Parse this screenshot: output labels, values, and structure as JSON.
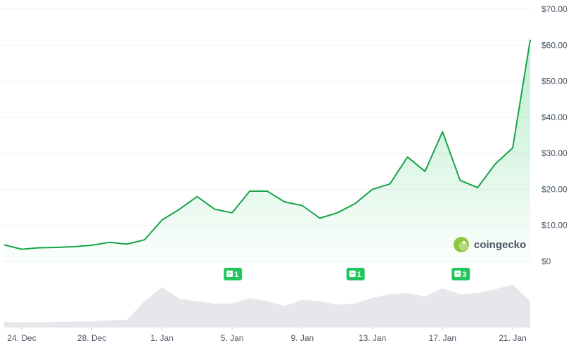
{
  "chart_data": {
    "type": "area",
    "title": "",
    "xlabel": "",
    "ylabel": "",
    "y_unit_prefix": "$",
    "y_ticks": [
      "$70.00",
      "$60.00",
      "$50.00",
      "$40.00",
      "$30.00",
      "$20.00",
      "$10.00",
      "$0"
    ],
    "ylim": [
      0,
      70
    ],
    "x_ticks": [
      "24. Dec",
      "28. Dec",
      "1. Jan",
      "5. Jan",
      "9. Jan",
      "13. Jan",
      "17. Jan",
      "21. Jan"
    ],
    "grid": true,
    "line_color": "#16a34a",
    "fill_color": "#22c55e",
    "volume_color": "#e5e7eb",
    "series": [
      {
        "x": [
          "2023-12-23",
          "2023-12-24",
          "2023-12-25",
          "2023-12-26",
          "2023-12-27",
          "2023-12-28",
          "2023-12-29",
          "2023-12-30",
          "2023-12-31",
          "2024-01-01",
          "2024-01-02",
          "2024-01-03",
          "2024-01-04",
          "2024-01-05",
          "2024-01-06",
          "2024-01-07",
          "2024-01-08",
          "2024-01-09",
          "2024-01-10",
          "2024-01-11",
          "2024-01-12",
          "2024-01-13",
          "2024-01-14",
          "2024-01-15",
          "2024-01-16",
          "2024-01-17",
          "2024-01-18",
          "2024-01-19",
          "2024-01-20",
          "2024-01-21",
          "2024-01-22"
        ],
        "values": [
          4.6,
          3.4,
          3.8,
          3.9,
          4.1,
          4.5,
          5.3,
          4.8,
          6.0,
          11.5,
          14.5,
          18.0,
          14.5,
          13.5,
          19.5,
          19.5,
          16.5,
          15.5,
          12.0,
          13.5,
          16.0,
          20.0,
          21.5,
          29.0,
          25.0,
          36.0,
          22.5,
          20.5,
          27.0,
          31.5,
          61.5
        ]
      }
    ],
    "volume": [
      0.12,
      0.11,
      0.11,
      0.12,
      0.12,
      0.13,
      0.15,
      0.16,
      0.55,
      0.85,
      0.6,
      0.55,
      0.5,
      0.5,
      0.62,
      0.55,
      0.45,
      0.58,
      0.55,
      0.48,
      0.5,
      0.62,
      0.7,
      0.72,
      0.65,
      0.82,
      0.7,
      0.72,
      0.8,
      0.9,
      0.55
    ],
    "events": [
      {
        "label": "1",
        "date": "2024-01-05"
      },
      {
        "label": "1",
        "date": "2024-01-12"
      },
      {
        "label": "3",
        "date": "2024-01-18"
      }
    ]
  },
  "brand": {
    "name": "coingecko"
  }
}
